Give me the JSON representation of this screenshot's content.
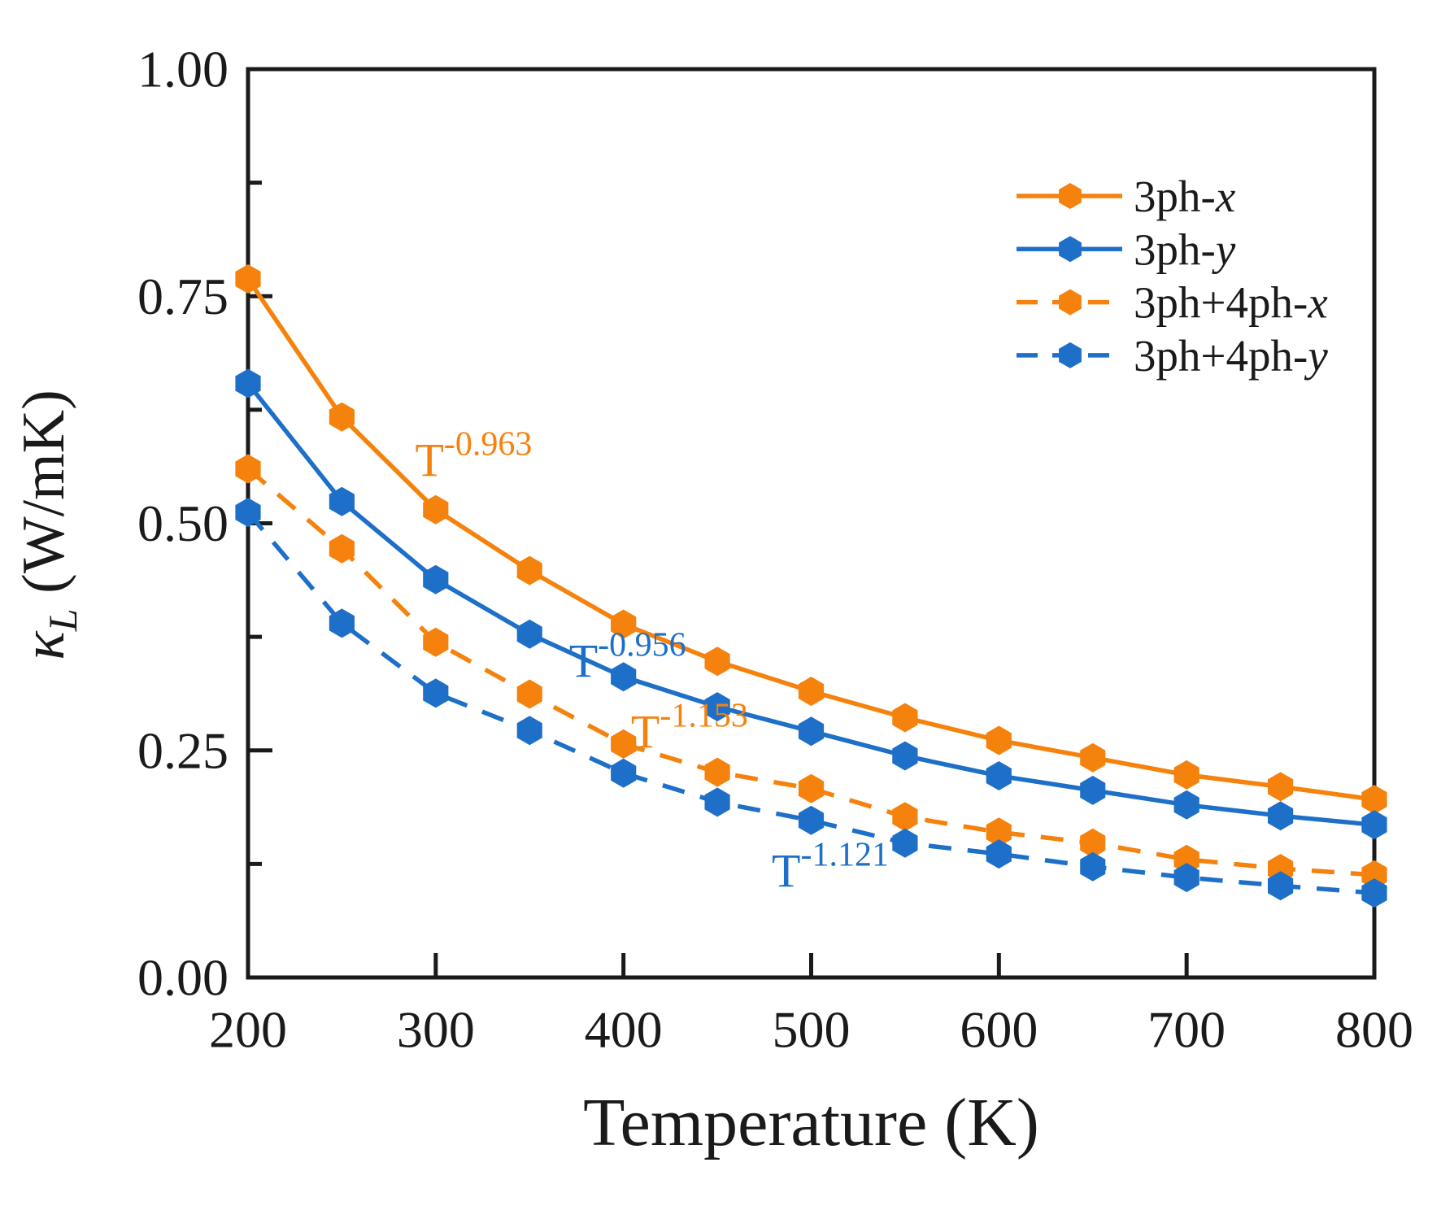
{
  "chart_data": {
    "type": "line",
    "title": "",
    "xlabel": "Temperature (K)",
    "ylabel": {
      "symbol": "κ",
      "subscript": "L",
      "unit": " (W/mK)"
    },
    "xlim": [
      200,
      800
    ],
    "ylim": [
      0.0,
      1.0
    ],
    "grid": false,
    "x_ticks": {
      "major": [
        200,
        300,
        400,
        500,
        600,
        700,
        800
      ],
      "labels": [
        "200",
        "300",
        "400",
        "500",
        "600",
        "700",
        "800"
      ]
    },
    "y_ticks": {
      "major": [
        0.0,
        0.25,
        0.5,
        0.75,
        1.0
      ],
      "labels": [
        "0.00",
        "0.25",
        "0.50",
        "0.75",
        "1.00"
      ],
      "minor": [
        0.125,
        0.375,
        0.625,
        0.875
      ]
    },
    "colors": {
      "orange": "#F5820D",
      "blue": "#1E6FC8",
      "axis": "#1A1A1A"
    },
    "legend_position": "top-right",
    "x": [
      200,
      250,
      300,
      350,
      400,
      450,
      500,
      550,
      600,
      650,
      700,
      750,
      800
    ],
    "series": [
      {
        "name": "3ph-x",
        "label_main": "3ph-",
        "label_italic": "x",
        "color": "#F5820D",
        "style": "solid",
        "marker": "hexagon",
        "values": [
          0.769,
          0.617,
          0.515,
          0.448,
          0.389,
          0.348,
          0.315,
          0.286,
          0.261,
          0.242,
          0.223,
          0.21,
          0.196
        ]
      },
      {
        "name": "3ph-y",
        "label_main": "3ph-",
        "label_italic": "y",
        "color": "#1E6FC8",
        "style": "solid",
        "marker": "hexagon",
        "values": [
          0.654,
          0.524,
          0.438,
          0.378,
          0.331,
          0.298,
          0.271,
          0.244,
          0.222,
          0.206,
          0.19,
          0.178,
          0.168
        ]
      },
      {
        "name": "3ph+4ph-x",
        "label_main": "3ph+4ph-",
        "label_italic": "x",
        "color": "#F5820D",
        "style": "dashed",
        "marker": "hexagon",
        "values": [
          0.56,
          0.472,
          0.369,
          0.312,
          0.257,
          0.226,
          0.208,
          0.177,
          0.16,
          0.148,
          0.13,
          0.12,
          0.113
        ]
      },
      {
        "name": "3ph+4ph-y",
        "label_main": "3ph+4ph-",
        "label_italic": "y",
        "color": "#1E6FC8",
        "style": "dashed",
        "marker": "hexagon",
        "values": [
          0.512,
          0.39,
          0.313,
          0.272,
          0.225,
          0.193,
          0.173,
          0.148,
          0.136,
          0.122,
          0.11,
          0.101,
          0.093
        ]
      }
    ],
    "annotations": [
      {
        "base": "T",
        "exponent": "-0.963",
        "color": "#F5820D",
        "x": 289,
        "y": 0.552
      },
      {
        "base": "T",
        "exponent": "-0.956",
        "color": "#1E6FC8",
        "x": 371,
        "y": 0.331
      },
      {
        "base": "T",
        "exponent": "-1.153",
        "color": "#F5820D",
        "x": 404,
        "y": 0.253
      },
      {
        "base": "T",
        "exponent": "-1.121",
        "color": "#1E6FC8",
        "x": 479,
        "y": 0.1
      }
    ]
  }
}
